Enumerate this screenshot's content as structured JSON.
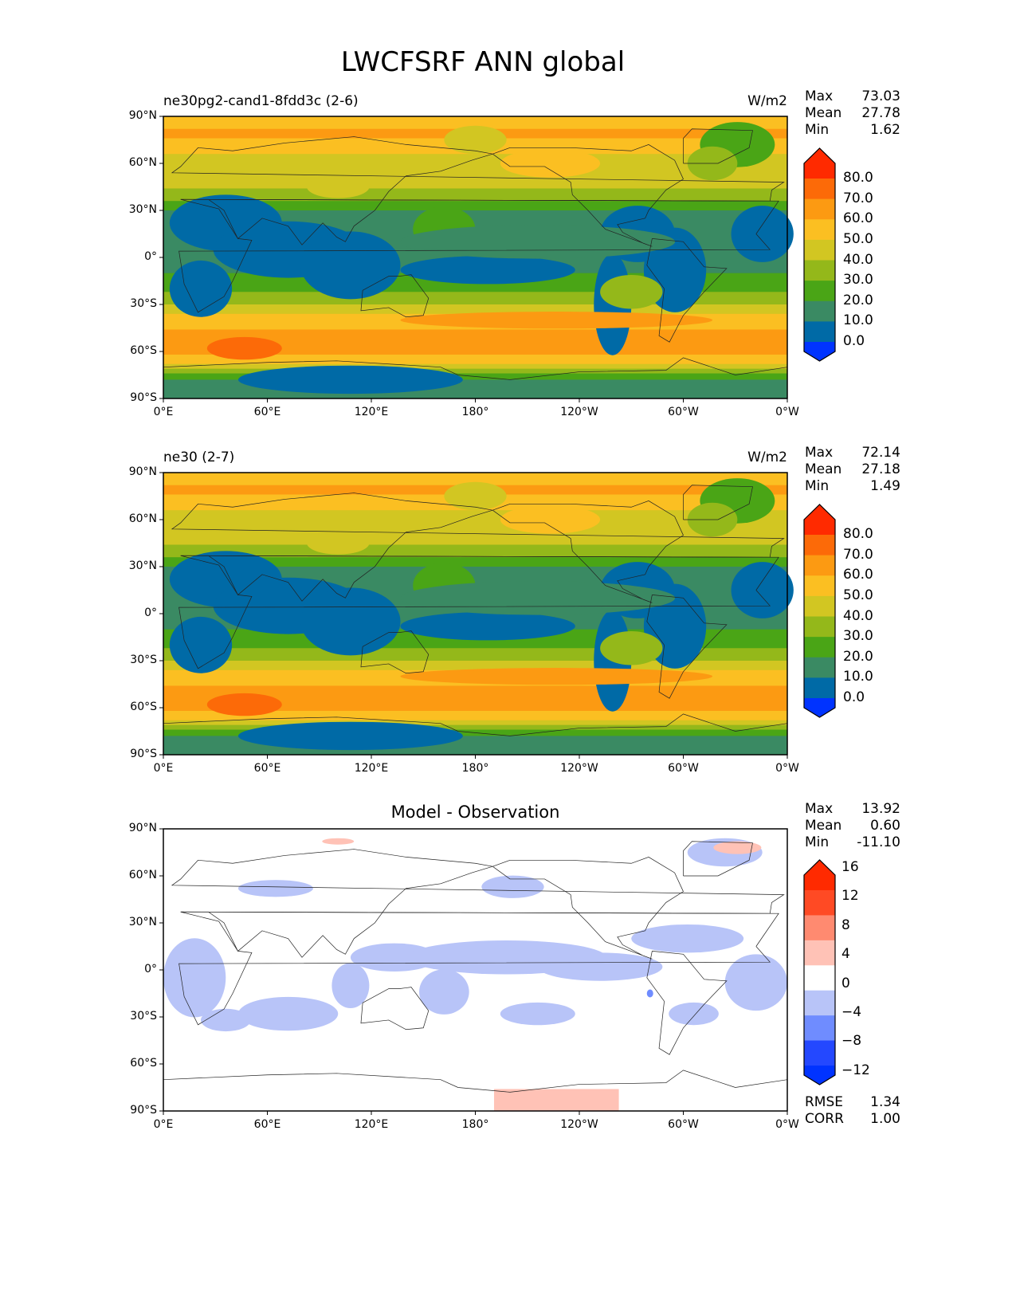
{
  "figure_title": "LWCFSRF ANN global",
  "panels": [
    {
      "title": "ne30pg2-cand1-8fdd3c (2-6)",
      "units": "W/m2",
      "stats": {
        "max_label": "Max",
        "max": "73.03",
        "mean_label": "Mean",
        "mean": "27.78",
        "min_label": "Min",
        "min": "1.62"
      }
    },
    {
      "title": "ne30 (2-7)",
      "units": "W/m2",
      "stats": {
        "max_label": "Max",
        "max": "72.14",
        "mean_label": "Mean",
        "mean": "27.18",
        "min_label": "Min",
        "min": "1.49"
      }
    },
    {
      "title": "Model - Observation",
      "units": "",
      "stats": {
        "max_label": "Max",
        "max": "13.92",
        "mean_label": "Mean",
        "mean": "0.60",
        "min_label": "Min",
        "min": "-11.10"
      },
      "extra": {
        "rmse_label": "RMSE",
        "rmse": "1.34",
        "corr_label": "CORR",
        "corr": "1.00"
      }
    }
  ],
  "lat_ticks": [
    "90°N",
    "60°N",
    "30°N",
    "0°",
    "30°S",
    "60°S",
    "90°S"
  ],
  "lon_ticks": [
    "0°E",
    "60°E",
    "120°E",
    "180°",
    "120°W",
    "60°W",
    "0°W"
  ],
  "colorbar_main": {
    "labels": [
      "80.0",
      "70.0",
      "60.0",
      "50.0",
      "40.0",
      "30.0",
      "20.0",
      "10.0",
      "0.0"
    ],
    "colors": [
      "#ff2a00",
      "#fc6a08",
      "#fc9a12",
      "#fbbf22",
      "#d2c622",
      "#94b81a",
      "#4aa516",
      "#3a8a63",
      "#006aa6",
      "#0033ff"
    ]
  },
  "colorbar_diff": {
    "labels": [
      "16",
      "12",
      "8",
      "4",
      "0",
      "−4",
      "−8",
      "−12"
    ],
    "colors": [
      "#ff2a00",
      "#ff4a24",
      "#ff8a70",
      "#ffc2b6",
      "#ffffff",
      "#b8c4f8",
      "#6f8cff",
      "#2448ff",
      "#0033ff"
    ]
  },
  "chart_data": {
    "type": "heatmap",
    "variable": "LWCFSRF",
    "season": "ANN",
    "region": "global",
    "units": "W/m2",
    "main_levels": [
      0,
      10,
      20,
      30,
      40,
      50,
      60,
      70,
      80
    ],
    "diff_levels": [
      -12,
      -8,
      -4,
      0,
      4,
      8,
      12,
      16
    ]
  }
}
